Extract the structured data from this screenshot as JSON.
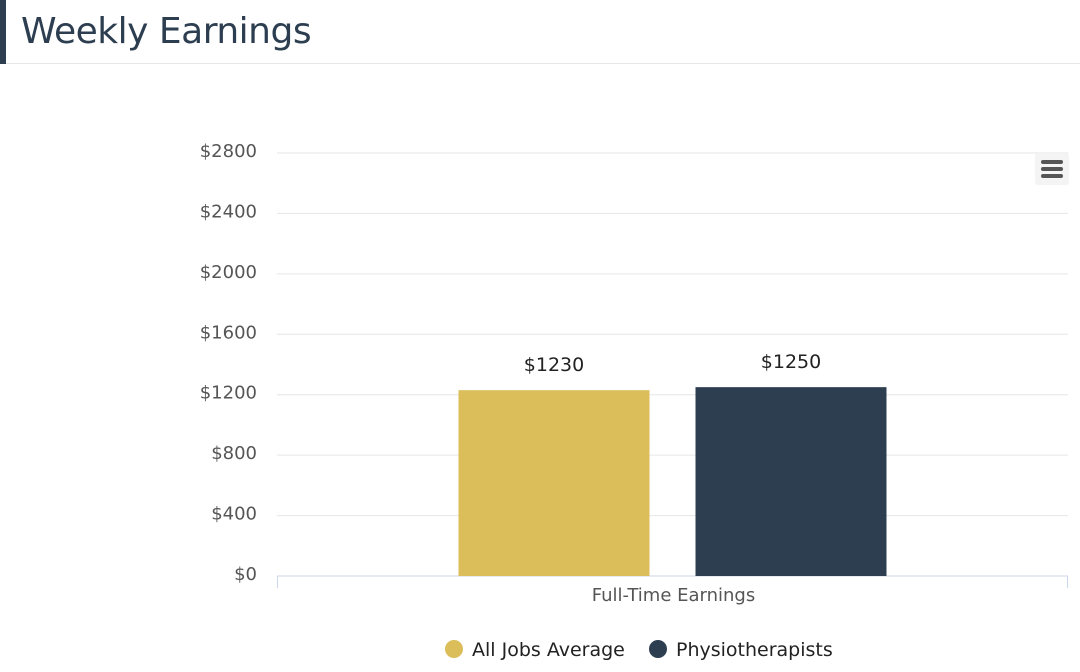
{
  "header": {
    "title": "Weekly Earnings"
  },
  "chart_menu": {
    "icon": "hamburger-menu-icon"
  },
  "chart_data": {
    "type": "bar",
    "categories": [
      "Full-Time Earnings"
    ],
    "series": [
      {
        "name": "All Jobs Average",
        "values": [
          1230
        ],
        "color": "#dbbe5a",
        "label": "$1230"
      },
      {
        "name": "Physiotherapists",
        "values": [
          1250
        ],
        "color": "#2c3e50",
        "label": "$1250"
      }
    ],
    "y_ticks": [
      "$0",
      "$400",
      "$800",
      "$1200",
      "$1600",
      "$2000",
      "$2400",
      "$2800"
    ],
    "y_tick_values": [
      0,
      400,
      800,
      1200,
      1600,
      2000,
      2400,
      2800
    ],
    "ylim": [
      0,
      2800
    ],
    "grid": true,
    "legend_position": "bottom-center",
    "title": "",
    "xlabel": "",
    "ylabel": ""
  }
}
